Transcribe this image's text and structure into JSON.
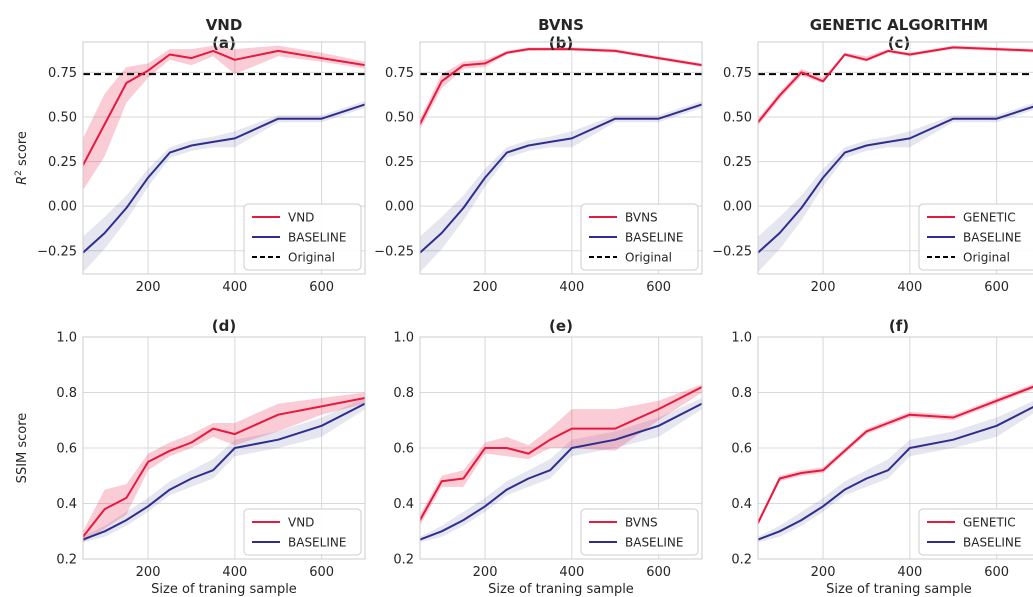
{
  "colors": {
    "method": "#e8183f",
    "baseline": "#2f2e8e",
    "original": "#000000",
    "grid": "#d9d9d9",
    "spine": "#cccccc",
    "text": "#262626"
  },
  "chart_data": [
    {
      "id": "a",
      "type": "line",
      "row": 0,
      "col": 0,
      "title": "VND",
      "subtitle": "(a)",
      "xlabel": "",
      "ylabel": "R² score",
      "xlim": [
        50,
        700
      ],
      "ylim": [
        -0.38,
        0.92
      ],
      "xticks": [
        200,
        400,
        600
      ],
      "yticks": [
        -0.25,
        0.0,
        0.25,
        0.5,
        0.75
      ],
      "ytick_labels": [
        "−0.25",
        "0.00",
        "0.25",
        "0.50",
        "0.75"
      ],
      "hline": {
        "name": "Original",
        "y": 0.74
      },
      "legend": [
        "VND",
        "BASELINE",
        "Original"
      ],
      "series": [
        {
          "name": "VND",
          "role": "method",
          "x": [
            50,
            100,
            150,
            200,
            250,
            300,
            350,
            400,
            500,
            600,
            700
          ],
          "y": [
            0.23,
            0.46,
            0.69,
            0.76,
            0.85,
            0.83,
            0.87,
            0.82,
            0.87,
            0.83,
            0.79
          ],
          "lo": [
            0.09,
            0.28,
            0.58,
            0.72,
            0.82,
            0.79,
            0.84,
            0.74,
            0.84,
            0.81,
            0.77
          ],
          "hi": [
            0.38,
            0.63,
            0.78,
            0.8,
            0.88,
            0.88,
            0.9,
            0.88,
            0.9,
            0.86,
            0.81
          ]
        },
        {
          "name": "BASELINE",
          "role": "baseline",
          "x": [
            50,
            100,
            150,
            200,
            250,
            300,
            350,
            400,
            500,
            600,
            700
          ],
          "y": [
            -0.26,
            -0.15,
            -0.01,
            0.16,
            0.3,
            0.34,
            0.36,
            0.38,
            0.49,
            0.49,
            0.57
          ],
          "lo": [
            -0.37,
            -0.24,
            -0.08,
            0.11,
            0.27,
            0.31,
            0.33,
            0.33,
            0.47,
            0.47,
            0.55
          ],
          "hi": [
            -0.17,
            -0.06,
            0.06,
            0.21,
            0.33,
            0.37,
            0.39,
            0.42,
            0.51,
            0.51,
            0.59
          ]
        }
      ]
    },
    {
      "id": "b",
      "type": "line",
      "row": 0,
      "col": 1,
      "title": "BVNS",
      "subtitle": "(b)",
      "xlabel": "",
      "ylabel": "",
      "xlim": [
        50,
        700
      ],
      "ylim": [
        -0.38,
        0.92
      ],
      "xticks": [
        200,
        400,
        600
      ],
      "yticks": [
        -0.25,
        0.0,
        0.25,
        0.5,
        0.75
      ],
      "ytick_labels": [
        "−0.25",
        "0.00",
        "0.25",
        "0.50",
        "0.75"
      ],
      "hline": {
        "name": "Original",
        "y": 0.74
      },
      "legend": [
        "BVNS",
        "BASELINE",
        "Original"
      ],
      "series": [
        {
          "name": "BVNS",
          "role": "method",
          "x": [
            50,
            100,
            150,
            200,
            250,
            300,
            350,
            400,
            500,
            600,
            700
          ],
          "y": [
            0.46,
            0.7,
            0.79,
            0.8,
            0.86,
            0.88,
            0.88,
            0.88,
            0.87,
            0.83,
            0.79
          ],
          "lo": [
            0.43,
            0.66,
            0.77,
            0.78,
            0.85,
            0.87,
            0.87,
            0.87,
            0.86,
            0.82,
            0.78
          ],
          "hi": [
            0.49,
            0.74,
            0.81,
            0.82,
            0.87,
            0.89,
            0.89,
            0.89,
            0.88,
            0.84,
            0.8
          ]
        },
        {
          "name": "BASELINE",
          "role": "baseline",
          "x": [
            50,
            100,
            150,
            200,
            250,
            300,
            350,
            400,
            500,
            600,
            700
          ],
          "y": [
            -0.26,
            -0.15,
            -0.01,
            0.16,
            0.3,
            0.34,
            0.36,
            0.38,
            0.49,
            0.49,
            0.57
          ],
          "lo": [
            -0.37,
            -0.24,
            -0.08,
            0.11,
            0.27,
            0.31,
            0.33,
            0.33,
            0.47,
            0.47,
            0.55
          ],
          "hi": [
            -0.17,
            -0.06,
            0.06,
            0.21,
            0.33,
            0.37,
            0.39,
            0.42,
            0.51,
            0.51,
            0.59
          ]
        }
      ]
    },
    {
      "id": "c",
      "type": "line",
      "row": 0,
      "col": 2,
      "title": "GENETIC ALGORITHM",
      "subtitle": "(c)",
      "xlabel": "",
      "ylabel": "",
      "xlim": [
        50,
        700
      ],
      "ylim": [
        -0.38,
        0.92
      ],
      "xticks": [
        200,
        400,
        600
      ],
      "yticks": [
        -0.25,
        0.0,
        0.25,
        0.5,
        0.75
      ],
      "ytick_labels": [
        "−0.25",
        "0.00",
        "0.25",
        "0.50",
        "0.75"
      ],
      "hline": {
        "name": "Original",
        "y": 0.74
      },
      "legend": [
        "GENETIC",
        "BASELINE",
        "Original"
      ],
      "series": [
        {
          "name": "GENETIC",
          "role": "method",
          "x": [
            50,
            100,
            150,
            200,
            250,
            300,
            350,
            400,
            500,
            600,
            700
          ],
          "y": [
            0.47,
            0.62,
            0.75,
            0.7,
            0.85,
            0.82,
            0.87,
            0.85,
            0.89,
            0.88,
            0.87
          ],
          "lo": [
            0.45,
            0.6,
            0.73,
            0.69,
            0.84,
            0.81,
            0.86,
            0.84,
            0.88,
            0.87,
            0.86
          ],
          "hi": [
            0.49,
            0.64,
            0.77,
            0.72,
            0.86,
            0.84,
            0.88,
            0.86,
            0.9,
            0.89,
            0.88
          ]
        },
        {
          "name": "BASELINE",
          "role": "baseline",
          "x": [
            50,
            100,
            150,
            200,
            250,
            300,
            350,
            400,
            500,
            600,
            700
          ],
          "y": [
            -0.26,
            -0.15,
            -0.01,
            0.16,
            0.3,
            0.34,
            0.36,
            0.38,
            0.49,
            0.49,
            0.57
          ],
          "lo": [
            -0.37,
            -0.24,
            -0.08,
            0.11,
            0.27,
            0.31,
            0.33,
            0.33,
            0.47,
            0.47,
            0.55
          ],
          "hi": [
            -0.17,
            -0.06,
            0.06,
            0.21,
            0.33,
            0.37,
            0.39,
            0.42,
            0.51,
            0.51,
            0.59
          ]
        }
      ]
    },
    {
      "id": "d",
      "type": "line",
      "row": 1,
      "col": 0,
      "title": "",
      "subtitle": "(d)",
      "xlabel": "Size of traning sample",
      "ylabel": "SSIM score",
      "xlim": [
        50,
        700
      ],
      "ylim": [
        0.2,
        1.0
      ],
      "xticks": [
        200,
        400,
        600
      ],
      "yticks": [
        0.2,
        0.4,
        0.6,
        0.8,
        1.0
      ],
      "ytick_labels": [
        "0.2",
        "0.4",
        "0.6",
        "0.8",
        "1.0"
      ],
      "hline": null,
      "legend": [
        "VND",
        "BASELINE"
      ],
      "series": [
        {
          "name": "VND",
          "role": "method",
          "x": [
            50,
            100,
            150,
            200,
            250,
            300,
            350,
            400,
            500,
            600,
            700
          ],
          "y": [
            0.28,
            0.38,
            0.42,
            0.55,
            0.59,
            0.62,
            0.67,
            0.65,
            0.72,
            0.75,
            0.78
          ],
          "lo": [
            0.26,
            0.31,
            0.36,
            0.52,
            0.57,
            0.6,
            0.64,
            0.61,
            0.66,
            0.72,
            0.76
          ],
          "hi": [
            0.3,
            0.45,
            0.47,
            0.58,
            0.62,
            0.65,
            0.69,
            0.69,
            0.76,
            0.78,
            0.8
          ]
        },
        {
          "name": "BASELINE",
          "role": "baseline",
          "x": [
            50,
            100,
            150,
            200,
            250,
            300,
            350,
            400,
            500,
            600,
            700
          ],
          "y": [
            0.27,
            0.3,
            0.34,
            0.39,
            0.45,
            0.49,
            0.52,
            0.6,
            0.63,
            0.68,
            0.76
          ],
          "lo": [
            0.26,
            0.28,
            0.32,
            0.37,
            0.43,
            0.46,
            0.49,
            0.57,
            0.6,
            0.64,
            0.74
          ],
          "hi": [
            0.28,
            0.32,
            0.37,
            0.42,
            0.48,
            0.52,
            0.56,
            0.63,
            0.66,
            0.71,
            0.78
          ]
        }
      ]
    },
    {
      "id": "e",
      "type": "line",
      "row": 1,
      "col": 1,
      "title": "",
      "subtitle": "(e)",
      "xlabel": "Size of traning sample",
      "ylabel": "",
      "xlim": [
        50,
        700
      ],
      "ylim": [
        0.2,
        1.0
      ],
      "xticks": [
        200,
        400,
        600
      ],
      "yticks": [
        0.2,
        0.4,
        0.6,
        0.8,
        1.0
      ],
      "ytick_labels": [
        "0.2",
        "0.4",
        "0.6",
        "0.8",
        "1.0"
      ],
      "hline": null,
      "legend": [
        "BVNS",
        "BASELINE"
      ],
      "series": [
        {
          "name": "BVNS",
          "role": "method",
          "x": [
            50,
            100,
            150,
            200,
            250,
            300,
            350,
            400,
            500,
            600,
            700
          ],
          "y": [
            0.34,
            0.48,
            0.49,
            0.6,
            0.6,
            0.58,
            0.63,
            0.67,
            0.67,
            0.74,
            0.82
          ],
          "lo": [
            0.32,
            0.46,
            0.46,
            0.58,
            0.57,
            0.56,
            0.6,
            0.6,
            0.59,
            0.7,
            0.8
          ],
          "hi": [
            0.36,
            0.5,
            0.52,
            0.62,
            0.64,
            0.61,
            0.67,
            0.74,
            0.74,
            0.77,
            0.83
          ]
        },
        {
          "name": "BASELINE",
          "role": "baseline",
          "x": [
            50,
            100,
            150,
            200,
            250,
            300,
            350,
            400,
            500,
            600,
            700
          ],
          "y": [
            0.27,
            0.3,
            0.34,
            0.39,
            0.45,
            0.49,
            0.52,
            0.6,
            0.63,
            0.68,
            0.76
          ],
          "lo": [
            0.26,
            0.28,
            0.32,
            0.37,
            0.43,
            0.46,
            0.49,
            0.57,
            0.6,
            0.64,
            0.74
          ],
          "hi": [
            0.28,
            0.32,
            0.37,
            0.42,
            0.48,
            0.52,
            0.56,
            0.63,
            0.66,
            0.71,
            0.78
          ]
        }
      ]
    },
    {
      "id": "f",
      "type": "line",
      "row": 1,
      "col": 2,
      "title": "",
      "subtitle": "(f)",
      "xlabel": "Size of traning sample",
      "ylabel": "",
      "xlim": [
        50,
        700
      ],
      "ylim": [
        0.2,
        1.0
      ],
      "xticks": [
        200,
        400,
        600
      ],
      "yticks": [
        0.2,
        0.4,
        0.6,
        0.8,
        1.0
      ],
      "ytick_labels": [
        "0.2",
        "0.4",
        "0.6",
        "0.8",
        "1.0"
      ],
      "hline": null,
      "legend": [
        "GENETIC",
        "BASELINE"
      ],
      "series": [
        {
          "name": "GENETIC",
          "role": "method",
          "x": [
            50,
            100,
            150,
            200,
            250,
            300,
            350,
            400,
            500,
            600,
            700
          ],
          "y": [
            0.33,
            0.49,
            0.51,
            0.52,
            0.59,
            0.66,
            0.69,
            0.72,
            0.71,
            0.77,
            0.83
          ],
          "lo": [
            0.32,
            0.48,
            0.5,
            0.51,
            0.58,
            0.65,
            0.68,
            0.71,
            0.7,
            0.76,
            0.82
          ],
          "hi": [
            0.34,
            0.5,
            0.52,
            0.53,
            0.6,
            0.67,
            0.7,
            0.73,
            0.72,
            0.78,
            0.84
          ]
        },
        {
          "name": "BASELINE",
          "role": "baseline",
          "x": [
            50,
            100,
            150,
            200,
            250,
            300,
            350,
            400,
            500,
            600,
            700
          ],
          "y": [
            0.27,
            0.3,
            0.34,
            0.39,
            0.45,
            0.49,
            0.52,
            0.6,
            0.63,
            0.68,
            0.76
          ],
          "lo": [
            0.26,
            0.28,
            0.32,
            0.37,
            0.43,
            0.46,
            0.49,
            0.57,
            0.6,
            0.64,
            0.74
          ],
          "hi": [
            0.28,
            0.32,
            0.37,
            0.42,
            0.48,
            0.52,
            0.56,
            0.63,
            0.66,
            0.71,
            0.78
          ]
        }
      ]
    }
  ]
}
